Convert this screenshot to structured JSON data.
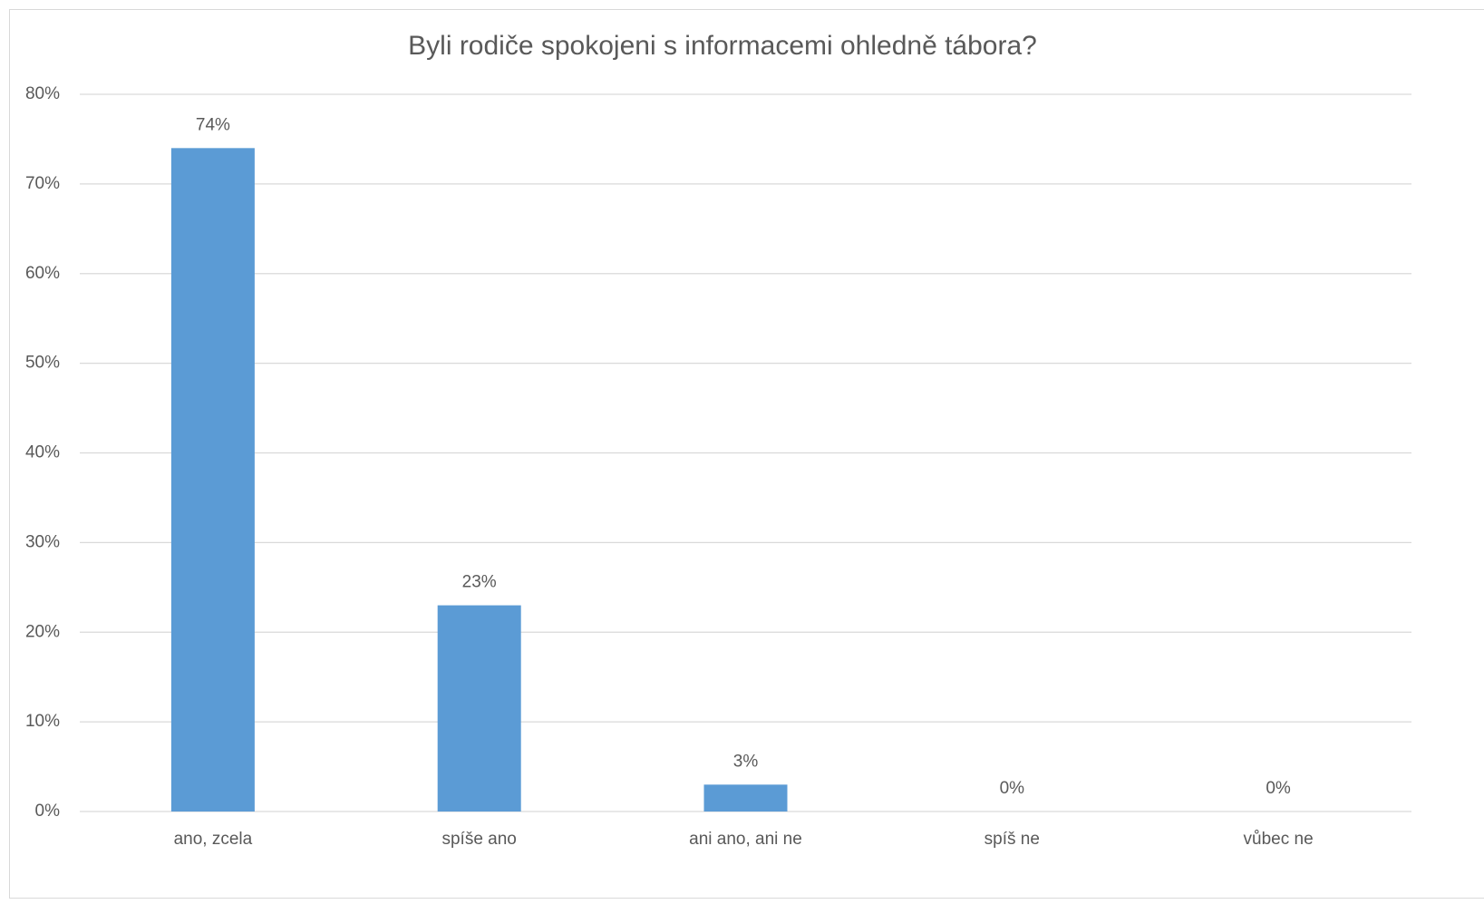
{
  "chart_data": {
    "type": "bar",
    "title": "Byli rodiče spokojeni s informacemi ohledně tábora?",
    "categories": [
      "ano, zcela",
      "spíše ano",
      "ani ano, ani ne",
      "spíš ne",
      "vůbec ne"
    ],
    "values": [
      74,
      23,
      3,
      0,
      0
    ],
    "value_labels": [
      "74%",
      "23%",
      "3%",
      "0%",
      "0%"
    ],
    "color": "#5b9bd5",
    "ylim": [
      0,
      80
    ],
    "yticks": [
      {
        "value": 0,
        "label": "0%"
      },
      {
        "value": 10,
        "label": "10%"
      },
      {
        "value": 20,
        "label": "20%"
      },
      {
        "value": 30,
        "label": "30%"
      },
      {
        "value": 40,
        "label": "40%"
      },
      {
        "value": 50,
        "label": "50%"
      },
      {
        "value": 60,
        "label": "60%"
      },
      {
        "value": 70,
        "label": "70%"
      },
      {
        "value": 80,
        "label": "80%"
      }
    ],
    "grid": true
  }
}
